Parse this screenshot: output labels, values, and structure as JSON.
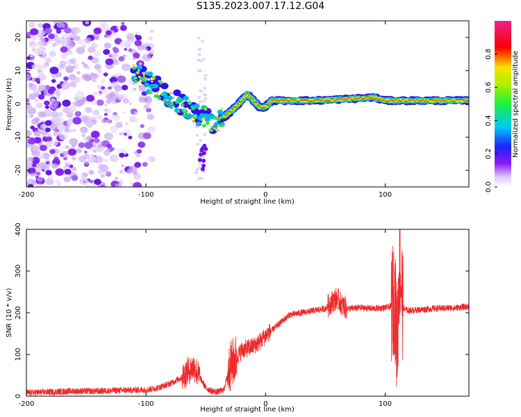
{
  "title": "S135.2023.007.17.12.G04",
  "chart_data": [
    {
      "type": "heatmap",
      "xlabel": "Height of straight line (km)",
      "ylabel": "Frequency (Hz)",
      "xlim": [
        -200,
        170
      ],
      "ylim": [
        -25,
        25
      ],
      "x_ticks": [
        -200,
        -100,
        0,
        100
      ],
      "y_ticks": [
        -20,
        -10,
        0,
        10,
        20
      ],
      "colorbar": {
        "label": "Normalized spectral amplitude",
        "range": [
          0,
          1
        ],
        "ticks": [
          "0.0",
          "0.2",
          "0.4",
          "0.6",
          "0.8"
        ]
      },
      "ridge": [
        {
          "x": -110,
          "y": 9
        },
        {
          "x": -95,
          "y": 6
        },
        {
          "x": -80,
          "y": 2
        },
        {
          "x": -70,
          "y": 0
        },
        {
          "x": -60,
          "y": -3
        },
        {
          "x": -50,
          "y": -4
        },
        {
          "x": -42,
          "y": -6
        },
        {
          "x": -35,
          "y": -4
        },
        {
          "x": -28,
          "y": -2
        },
        {
          "x": -20,
          "y": 1
        },
        {
          "x": -16,
          "y": 3
        },
        {
          "x": -10,
          "y": 1
        },
        {
          "x": -5,
          "y": -1
        },
        {
          "x": 0,
          "y": -1
        },
        {
          "x": 5,
          "y": 1
        },
        {
          "x": 40,
          "y": 1
        },
        {
          "x": 70,
          "y": 1.5
        },
        {
          "x": 90,
          "y": 2
        },
        {
          "x": 100,
          "y": 1
        },
        {
          "x": 110,
          "y": 1
        },
        {
          "x": 170,
          "y": 1
        }
      ]
    },
    {
      "type": "line",
      "xlabel": "Height of straight line (km)",
      "ylabel": "SNR (10 * v/v)",
      "xlim": [
        -200,
        170
      ],
      "ylim": [
        0,
        400
      ],
      "x_ticks": [
        -200,
        -100,
        0,
        100
      ],
      "y_ticks": [
        0,
        100,
        200,
        300,
        400
      ],
      "color": "#ee2a2a",
      "series": [
        {
          "x": [
            -200,
            -180,
            -160,
            -140,
            -120,
            -100,
            -90,
            -80,
            -70,
            -65,
            -60,
            -55,
            -50,
            -45,
            -40,
            -35,
            -30,
            -25,
            -20,
            -15,
            -10,
            -5,
            0,
            10,
            20,
            30,
            40,
            50,
            55,
            60,
            65,
            70,
            80,
            90,
            100,
            105,
            108,
            110,
            112,
            115,
            120,
            140,
            160,
            170
          ],
          "y": [
            8,
            10,
            12,
            12,
            14,
            15,
            20,
            30,
            45,
            60,
            70,
            45,
            20,
            12,
            10,
            15,
            70,
            90,
            110,
            115,
            120,
            130,
            145,
            170,
            195,
            200,
            205,
            210,
            225,
            235,
            215,
            210,
            212,
            210,
            212,
            215,
            240,
            120,
            330,
            210,
            205,
            210,
            212,
            215
          ]
        }
      ]
    }
  ]
}
